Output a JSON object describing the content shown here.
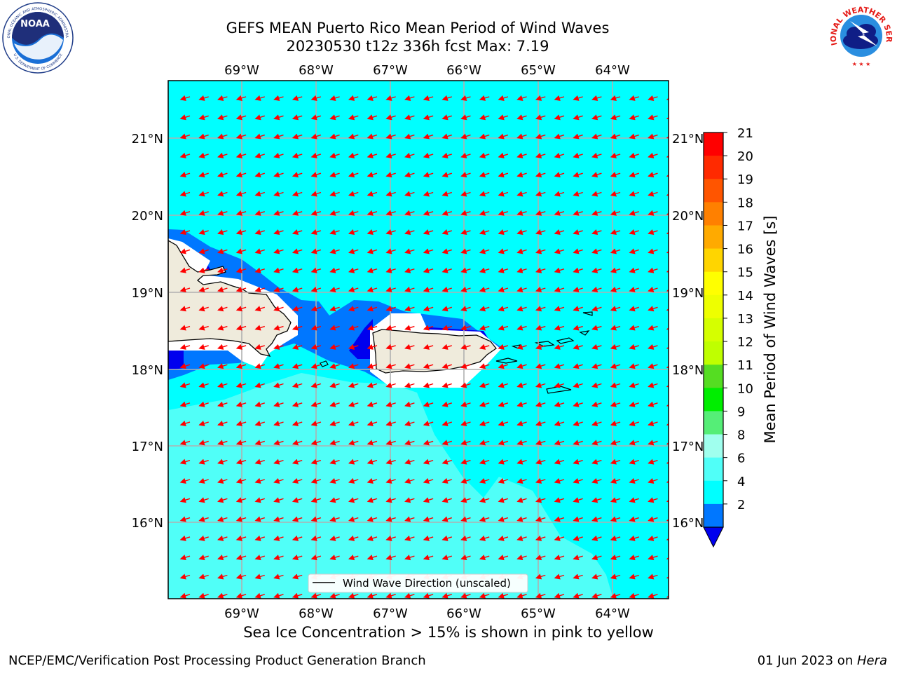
{
  "header": {
    "title_line1": "GEFS MEAN Puerto Rico Mean Period of Wind Waves",
    "title_line2": "20230530 t12z 336h fcst   Max: 7.19"
  },
  "logos": {
    "noaa_text": "NOAA",
    "noaa_ring_top": "NATIONAL OCEANIC AND ATMOSPHERIC ADMINISTRATION",
    "noaa_ring_bottom": "U.S. DEPARTMENT OF COMMERCE",
    "nws_ring": "NATIONAL WEATHER SERVICE"
  },
  "map": {
    "lon_ticks": [
      "69°W",
      "68°W",
      "67°W",
      "66°W",
      "65°W",
      "64°W"
    ],
    "lat_ticks": [
      "21°N",
      "20°N",
      "19°N",
      "18°N",
      "17°N",
      "16°N"
    ],
    "legend_label": "Wind Wave Direction (unscaled)",
    "arrow_color": "#ff0000",
    "land_color": "#efebdc"
  },
  "colorbar": {
    "label": "Mean Period of Wind Waves [s]",
    "ticks": [
      "21",
      "20",
      "19",
      "18",
      "17",
      "16",
      "15",
      "14",
      "13",
      "12",
      "11",
      "10",
      "9",
      "8",
      "6",
      "4",
      "2"
    ],
    "colors": [
      "#ff0000",
      "#ff2a00",
      "#ff5500",
      "#ff8000",
      "#ffaa00",
      "#ffd500",
      "#ffff00",
      "#eeff00",
      "#d5ff00",
      "#bfff00",
      "#55dd22",
      "#00ee00",
      "#55ee77",
      "#a0ffee",
      "#50fff8",
      "#00ffff",
      "#0077ff"
    ],
    "under_color": "#0000ee"
  },
  "subtitle": "Sea Ice Concentration > 15% is shown in pink to yellow",
  "footer": {
    "left": "NCEP/EMC/Verification Post Processing Product Generation Branch",
    "date": "01 Jun 2023 on ",
    "machine": "Hera"
  }
}
